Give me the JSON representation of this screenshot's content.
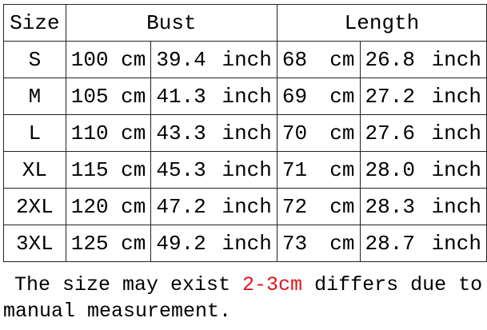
{
  "table": {
    "header": [
      "Size",
      "Bust",
      "Length"
    ],
    "rows": [
      [
        "S",
        "100 cm",
        "39.4 inch",
        "68 cm",
        "26.8 inch"
      ],
      [
        "M",
        "105 cm",
        "41.3 inch",
        "69 cm",
        "27.2 inch"
      ],
      [
        "L",
        "110 cm",
        "43.3 inch",
        "70 cm",
        "27.6 inch"
      ],
      [
        "XL",
        "115 cm",
        "45.3 inch",
        "71 cm",
        "28.0 inch"
      ],
      [
        "2XL",
        "120 cm",
        "47.2 inch",
        "72 cm",
        "28.3 inch"
      ],
      [
        "3XL",
        "125 cm",
        "49.2 inch",
        "73 cm",
        "28.7 inch"
      ]
    ]
  },
  "note": {
    "before": "The size may exist ",
    "highlight": "2-3cm",
    "after": " differs due to manual measurement."
  }
}
